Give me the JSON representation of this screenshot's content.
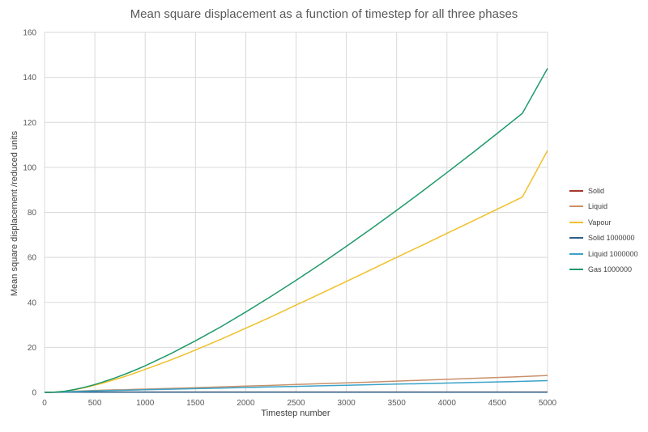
{
  "chart_data": {
    "type": "line",
    "title": "Mean square displacement as a function of timestep for all three phases",
    "xlabel": "Timestep number",
    "ylabel": "Mean square displacement /reduced units",
    "xlim": [
      0,
      5000
    ],
    "ylim": [
      0,
      160
    ],
    "xticks": [
      0,
      500,
      1000,
      1500,
      2000,
      2500,
      3000,
      3500,
      4000,
      4500,
      5000
    ],
    "yticks": [
      0,
      20,
      40,
      60,
      80,
      100,
      120,
      140,
      160
    ],
    "grid": true,
    "legend_position": "right",
    "x": [
      0,
      100,
      200,
      300,
      400,
      500,
      600,
      700,
      800,
      900,
      1000,
      1250,
      1500,
      1750,
      2000,
      2250,
      2500,
      2750,
      3000,
      3250,
      3500,
      3750,
      4000,
      4250,
      4500,
      4750,
      5000
    ],
    "series": [
      {
        "name": "Solid",
        "color": "#a5382a",
        "values": [
          0,
          0.05,
          0.1,
          0.12,
          0.13,
          0.14,
          0.14,
          0.15,
          0.15,
          0.15,
          0.15,
          0.15,
          0.15,
          0.15,
          0.15,
          0.15,
          0.15,
          0.15,
          0.15,
          0.15,
          0.15,
          0.15,
          0.15,
          0.15,
          0.15,
          0.15,
          0.15
        ]
      },
      {
        "name": "Liquid",
        "color": "#c8916a",
        "values": [
          0,
          0.1,
          0.3,
          0.5,
          0.7,
          0.85,
          1.0,
          1.1,
          1.2,
          1.35,
          1.45,
          1.75,
          2.1,
          2.4,
          2.8,
          3.1,
          3.5,
          3.85,
          4.2,
          4.6,
          5.0,
          5.4,
          5.8,
          6.2,
          6.6,
          7.0,
          7.5
        ]
      },
      {
        "name": "Vapour",
        "color": "#f0c02a",
        "values": [
          0,
          0.1,
          0.5,
          1.2,
          2.1,
          3.2,
          4.4,
          5.7,
          7.1,
          8.6,
          10.2,
          14.3,
          18.8,
          23.5,
          28.5,
          33.5,
          38.8,
          44.0,
          49.3,
          54.6,
          60.0,
          65.3,
          70.7,
          76.0,
          81.4,
          86.8,
          107.5
        ]
      },
      {
        "name": "Solid 1000000",
        "color": "#2e5f86",
        "values": [
          0,
          0.05,
          0.08,
          0.1,
          0.1,
          0.1,
          0.1,
          0.1,
          0.1,
          0.1,
          0.1,
          0.1,
          0.1,
          0.1,
          0.1,
          0.1,
          0.1,
          0.1,
          0.1,
          0.1,
          0.1,
          0.1,
          0.1,
          0.1,
          0.1,
          0.1,
          0.1
        ]
      },
      {
        "name": "Liquid 1000000",
        "color": "#3aa3c8",
        "values": [
          0,
          0.08,
          0.2,
          0.35,
          0.5,
          0.62,
          0.75,
          0.85,
          0.95,
          1.05,
          1.15,
          1.4,
          1.65,
          1.9,
          2.15,
          2.4,
          2.65,
          2.9,
          3.15,
          3.4,
          3.65,
          3.9,
          4.15,
          4.4,
          4.65,
          4.9,
          5.2
        ]
      },
      {
        "name": "Gas 1000000",
        "color": "#1f9a6a",
        "values": [
          0,
          0.1,
          0.5,
          1.3,
          2.3,
          3.5,
          4.9,
          6.4,
          8.1,
          9.9,
          11.8,
          17.1,
          22.9,
          29.1,
          35.7,
          42.6,
          49.8,
          57.2,
          64.9,
          72.8,
          80.9,
          89.2,
          97.7,
          106.3,
          115.1,
          124.0,
          144.0
        ]
      }
    ]
  }
}
